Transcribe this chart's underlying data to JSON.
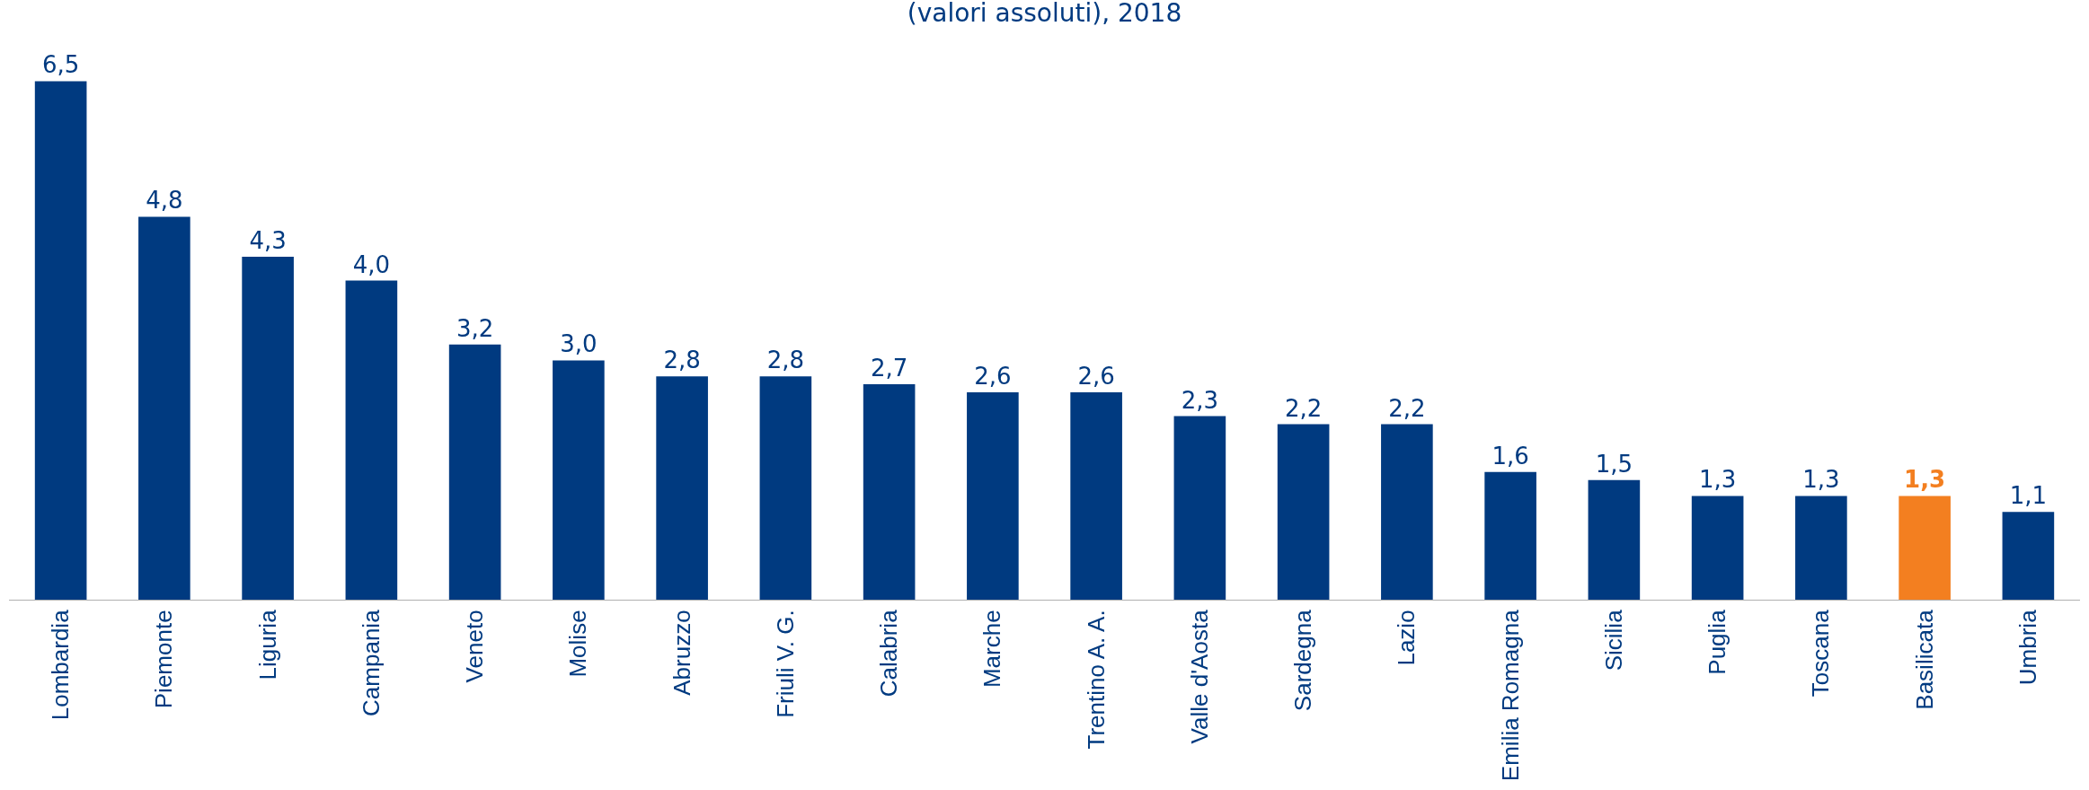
{
  "chart_data": {
    "type": "bar",
    "subtitle": "(valori assoluti), 2018",
    "categories": [
      "Lombardia",
      "Piemonte",
      "Liguria",
      "Campania",
      "Veneto",
      "Molise",
      "Abruzzo",
      "Friuli V. G.",
      "Calabria",
      "Marche",
      "Trentino A. A.",
      "Valle d'Aosta",
      "Sardegna",
      "Lazio",
      "Emilia Romagna",
      "Sicilia",
      "Puglia",
      "Toscana",
      "Basilicata",
      "Umbria"
    ],
    "values": [
      6.5,
      4.8,
      4.3,
      4.0,
      3.2,
      3.0,
      2.8,
      2.8,
      2.7,
      2.6,
      2.6,
      2.3,
      2.2,
      2.2,
      1.6,
      1.5,
      1.3,
      1.3,
      1.3,
      1.1
    ],
    "value_labels": [
      "6,5",
      "4,8",
      "4,3",
      "4,0",
      "3,2",
      "3,0",
      "2,8",
      "2,8",
      "2,7",
      "2,6",
      "2,6",
      "2,3",
      "2,2",
      "2,2",
      "1,6",
      "1,5",
      "1,3",
      "1,3",
      "1,3",
      "1,1"
    ],
    "colors": [
      "#003a80",
      "#003a80",
      "#003a80",
      "#003a80",
      "#003a80",
      "#003a80",
      "#003a80",
      "#003a80",
      "#003a80",
      "#003a80",
      "#003a80",
      "#003a80",
      "#003a80",
      "#003a80",
      "#003a80",
      "#003a80",
      "#003a80",
      "#003a80",
      "#f37f20",
      "#003a80"
    ],
    "tick_labels": "x"
  }
}
